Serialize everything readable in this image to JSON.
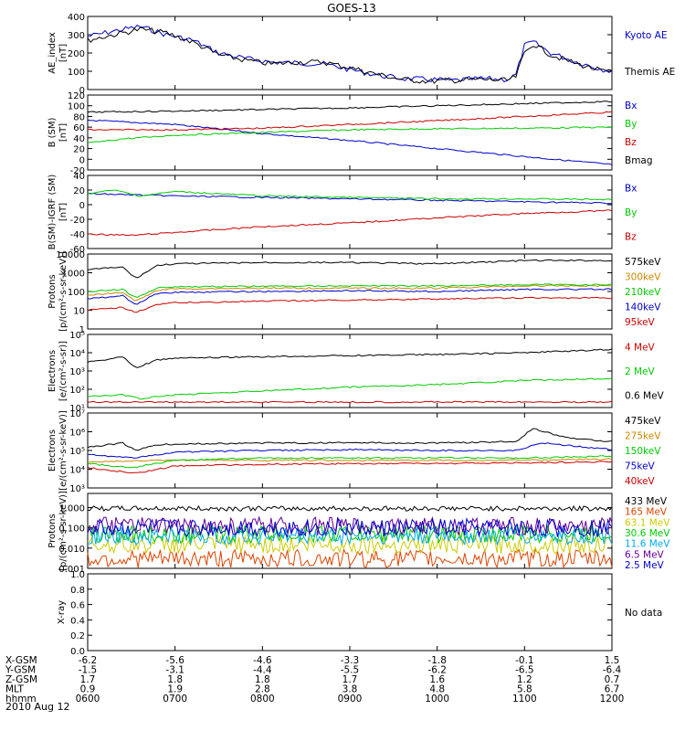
{
  "title": "GOES-13",
  "date_label": "2010 Aug 12",
  "x_ticks": [
    "0600",
    "0700",
    "0800",
    "0900",
    "1000",
    "1100",
    "1200"
  ],
  "orbit_rows": [
    {
      "name": "X-GSM",
      "values": [
        "-6.2",
        "-5.6",
        "-4.6",
        "-3.3",
        "-1.8",
        "-0.1",
        "1.5"
      ]
    },
    {
      "name": "Y-GSM",
      "values": [
        "-1.5",
        "-3.1",
        "-4.4",
        "-5.5",
        "-6.2",
        "-6.5",
        "-6.4"
      ]
    },
    {
      "name": "Z-GSM",
      "values": [
        "1.7",
        "1.8",
        "1.8",
        "1.7",
        "1.6",
        "1.2",
        "0.7"
      ]
    },
    {
      "name": "MLT",
      "values": [
        "0.9",
        "1.9",
        "2.8",
        "3.8",
        "4.8",
        "5.8",
        "6.7"
      ]
    },
    {
      "name": "hhmm",
      "values": [
        "0600",
        "0700",
        "0800",
        "0900",
        "1000",
        "1100",
        "1200"
      ]
    }
  ],
  "chart_data": [
    {
      "type": "line",
      "ylabel": [
        "AE_index",
        "[nT]"
      ],
      "ylim": [
        0,
        400
      ],
      "ticks": [
        "0",
        "100",
        "200",
        "300",
        "400"
      ],
      "tick_values": [
        0,
        100,
        200,
        300,
        400
      ],
      "series": [
        {
          "name": "Kyoto AE",
          "color": "#0000cc",
          "x": [
            6.0,
            6.3,
            6.6,
            6.9,
            7.2,
            7.5,
            7.8,
            8.1,
            8.4,
            8.7,
            9.0,
            9.3,
            9.6,
            9.9,
            10.2,
            10.5,
            10.8,
            10.9,
            11.0,
            11.1,
            11.3,
            11.6,
            11.9,
            12.0
          ],
          "y": [
            290,
            320,
            345,
            300,
            270,
            200,
            170,
            150,
            145,
            140,
            110,
            80,
            60,
            55,
            50,
            60,
            55,
            80,
            240,
            260,
            200,
            150,
            110,
            100
          ]
        },
        {
          "name": "Themis AE",
          "color": "#000000",
          "x": [
            6.0,
            6.3,
            6.6,
            6.9,
            7.2,
            7.5,
            7.8,
            8.1,
            8.4,
            8.7,
            9.0,
            9.3,
            9.6,
            9.9,
            10.2,
            10.5,
            10.8,
            10.9,
            11.0,
            11.1,
            11.3,
            11.6,
            11.9,
            12.0
          ],
          "y": [
            270,
            300,
            330,
            310,
            260,
            190,
            160,
            140,
            150,
            150,
            120,
            85,
            55,
            45,
            50,
            55,
            50,
            70,
            200,
            250,
            190,
            140,
            100,
            95
          ]
        }
      ]
    },
    {
      "type": "line",
      "ylabel": [
        "B (SM)",
        "[nT]"
      ],
      "ylim": [
        -20,
        120
      ],
      "ticks": [
        "-20",
        "0",
        "20",
        "40",
        "60",
        "80",
        "100",
        "120"
      ],
      "tick_values": [
        -20,
        0,
        20,
        40,
        60,
        80,
        100,
        120
      ],
      "series": [
        {
          "name": "Bx",
          "color": "#0000cc",
          "x": [
            6,
            7,
            8,
            9,
            10,
            11,
            12
          ],
          "y": [
            73,
            65,
            48,
            35,
            20,
            5,
            -10
          ]
        },
        {
          "name": "By",
          "color": "#00cc00",
          "x": [
            6,
            6.4,
            7,
            8,
            9,
            10,
            11,
            12
          ],
          "y": [
            30,
            38,
            45,
            50,
            55,
            57,
            58,
            60
          ]
        },
        {
          "name": "Bz",
          "color": "#cc0000",
          "x": [
            6,
            7,
            8,
            9,
            10,
            11,
            12
          ],
          "y": [
            55,
            55,
            58,
            65,
            72,
            80,
            88
          ]
        },
        {
          "name": "Bmag",
          "color": "#000000",
          "x": [
            6,
            7,
            8,
            9,
            10,
            11,
            12
          ],
          "y": [
            88,
            90,
            93,
            96,
            100,
            104,
            108
          ]
        }
      ]
    },
    {
      "type": "line",
      "ylabel": [
        "B(SM)-IGRF (SM)",
        "[nT]"
      ],
      "ylim": [
        -60,
        40
      ],
      "ticks": [
        "-60",
        "-40",
        "-20",
        "0",
        "20",
        "40"
      ],
      "tick_values": [
        -60,
        -40,
        -20,
        0,
        20,
        40
      ],
      "series": [
        {
          "name": "Bx",
          "color": "#0000cc",
          "x": [
            6,
            7,
            8,
            9,
            10,
            11,
            12
          ],
          "y": [
            15,
            12,
            10,
            8,
            6,
            4,
            2
          ]
        },
        {
          "name": "By",
          "color": "#00cc00",
          "x": [
            6,
            6.3,
            6.6,
            7,
            7.5,
            8,
            9,
            10,
            11,
            12
          ],
          "y": [
            15,
            20,
            12,
            18,
            15,
            12,
            10,
            8,
            8,
            7
          ]
        },
        {
          "name": "Bz",
          "color": "#cc0000",
          "x": [
            6,
            6.5,
            7,
            8,
            9,
            10,
            11,
            12
          ],
          "y": [
            -40,
            -42,
            -38,
            -30,
            -25,
            -18,
            -12,
            -8
          ]
        }
      ]
    },
    {
      "type": "line",
      "scale": "log",
      "ylabel": [
        "Protons",
        "[p/(cm²-s-sr-keV)]"
      ],
      "ylim": [
        1,
        10000
      ],
      "ticks": [
        "1",
        "10",
        "100",
        "1000",
        "10000"
      ],
      "tick_values": [
        1,
        10,
        100,
        1000,
        10000
      ],
      "series": [
        {
          "name": "575keV",
          "color": "#000000",
          "x": [
            6,
            6.4,
            6.55,
            6.8,
            7,
            8,
            9,
            10,
            11,
            12
          ],
          "y": [
            1500,
            2000,
            500,
            2500,
            3000,
            3500,
            3500,
            3000,
            4500,
            4500
          ]
        },
        {
          "name": "300keV",
          "color": "#cc8800",
          "x": [
            6,
            6.4,
            6.55,
            6.8,
            7,
            8,
            9,
            10,
            11,
            12
          ],
          "y": [
            60,
            90,
            30,
            120,
            140,
            150,
            150,
            150,
            200,
            200
          ]
        },
        {
          "name": "210keV",
          "color": "#00cc00",
          "x": [
            6,
            6.4,
            6.55,
            6.8,
            7,
            8,
            9,
            10,
            11,
            12
          ],
          "y": [
            100,
            130,
            45,
            160,
            180,
            190,
            200,
            200,
            230,
            230
          ]
        },
        {
          "name": "140keV",
          "color": "#0000cc",
          "x": [
            6,
            6.4,
            6.55,
            6.8,
            7,
            8,
            9,
            10,
            11,
            12
          ],
          "y": [
            40,
            60,
            20,
            80,
            90,
            100,
            110,
            100,
            130,
            130
          ]
        },
        {
          "name": "95keV",
          "color": "#cc0000",
          "x": [
            6,
            6.4,
            6.55,
            6.8,
            7,
            8,
            9,
            10,
            11,
            12
          ],
          "y": [
            10,
            14,
            8,
            20,
            25,
            30,
            35,
            40,
            45,
            45
          ]
        }
      ]
    },
    {
      "type": "line",
      "scale": "log",
      "ylabel": [
        "Electrons",
        "[e/(cm²-s-sr)]"
      ],
      "ylim": [
        10,
        100000
      ],
      "ticks": [
        "10¹",
        "10²",
        "10³",
        "10⁴",
        "10⁵"
      ],
      "tick_values": [
        10,
        100,
        1000,
        10000,
        100000
      ],
      "series": [
        {
          "name": "4 MeV",
          "color": "#cc0000",
          "x": [
            6,
            7,
            8,
            9,
            10,
            11,
            12
          ],
          "y": [
            20,
            20,
            20,
            20,
            20,
            20,
            20
          ]
        },
        {
          "name": "2 MeV",
          "color": "#00cc00",
          "x": [
            6,
            6.4,
            6.6,
            7,
            8,
            9,
            10,
            11,
            12
          ],
          "y": [
            40,
            50,
            30,
            50,
            80,
            130,
            180,
            300,
            400
          ]
        },
        {
          "name": "0.6 MeV",
          "color": "#000000",
          "x": [
            6,
            6.4,
            6.55,
            6.8,
            7,
            8,
            9,
            10,
            11,
            12
          ],
          "y": [
            3000,
            6000,
            1500,
            4000,
            5000,
            6000,
            7000,
            8000,
            10000,
            15000
          ]
        }
      ]
    },
    {
      "type": "line",
      "scale": "log",
      "ylabel": [
        "Electrons",
        "[e/(cm²-s-sr-keV)]"
      ],
      "ylim": [
        1000,
        10000000
      ],
      "ticks": [
        "10³",
        "10⁴",
        "10⁵",
        "10⁶",
        "10⁷"
      ],
      "tick_values": [
        1000,
        10000,
        100000,
        1000000,
        10000000
      ],
      "series": [
        {
          "name": "475keV",
          "color": "#000000",
          "x": [
            6,
            6.4,
            6.55,
            6.8,
            7,
            8,
            9,
            10,
            10.9,
            11.1,
            11.3,
            11.6,
            12
          ],
          "y": [
            150000,
            250000,
            100000,
            200000,
            220000,
            250000,
            260000,
            250000,
            300000,
            1500000,
            800000,
            400000,
            300000
          ]
        },
        {
          "name": "275keV",
          "color": "#cc8800",
          "x": [
            6,
            7,
            8,
            9,
            10,
            11,
            12
          ],
          "y": [
            25000,
            30000,
            30000,
            30000,
            30000,
            30000,
            35000
          ]
        },
        {
          "name": "150keV",
          "color": "#00cc00",
          "x": [
            6,
            6.5,
            7,
            8,
            9,
            10,
            11,
            12
          ],
          "y": [
            20000,
            12000,
            30000,
            40000,
            40000,
            40000,
            40000,
            50000
          ]
        },
        {
          "name": "75keV",
          "color": "#0000cc",
          "x": [
            6,
            6.5,
            7,
            8,
            9,
            10,
            10.9,
            11.2,
            12
          ],
          "y": [
            60000,
            40000,
            80000,
            100000,
            110000,
            100000,
            100000,
            250000,
            110000
          ]
        },
        {
          "name": "40keV",
          "color": "#cc0000",
          "x": [
            6,
            6.55,
            7,
            8,
            9,
            10,
            11,
            12
          ],
          "y": [
            12000,
            6000,
            15000,
            18000,
            20000,
            20000,
            22000,
            25000
          ]
        }
      ]
    },
    {
      "type": "line",
      "scale": "log",
      "ylabel": [
        "Protons",
        "[p/(cm²-s-sr-keV)]"
      ],
      "ylim": [
        0.001,
        5
      ],
      "ticks": [
        "0.001",
        "0.010",
        "0.100",
        "1.000"
      ],
      "tick_values": [
        0.001,
        0.01,
        0.1,
        1
      ],
      "series": [
        {
          "name": "433 MeV",
          "color": "#000000",
          "level": 0.9
        },
        {
          "name": "165 MeV",
          "color": "#dd4400",
          "level": 0.003
        },
        {
          "name": "63.1 MeV",
          "color": "#cccc00",
          "level": 0.015
        },
        {
          "name": "30.6 MeV",
          "color": "#00cc00",
          "level": 0.05
        },
        {
          "name": "11.6 MeV",
          "color": "#00aaee",
          "level": 0.04
        },
        {
          "name": "6.5 MeV",
          "color": "#660099",
          "level": 0.12
        },
        {
          "name": "2.5 MeV",
          "color": "#0000cc",
          "level": 0.1
        }
      ]
    },
    {
      "type": "line",
      "ylabel": [
        "X-ray"
      ],
      "ylim": [
        0,
        1
      ],
      "ticks": [
        "0.0",
        "0.2",
        "0.4",
        "0.6",
        "0.8",
        "1.0"
      ],
      "tick_values": [
        0,
        0.2,
        0.4,
        0.6,
        0.8,
        1.0
      ],
      "note": "No data",
      "series": []
    }
  ]
}
